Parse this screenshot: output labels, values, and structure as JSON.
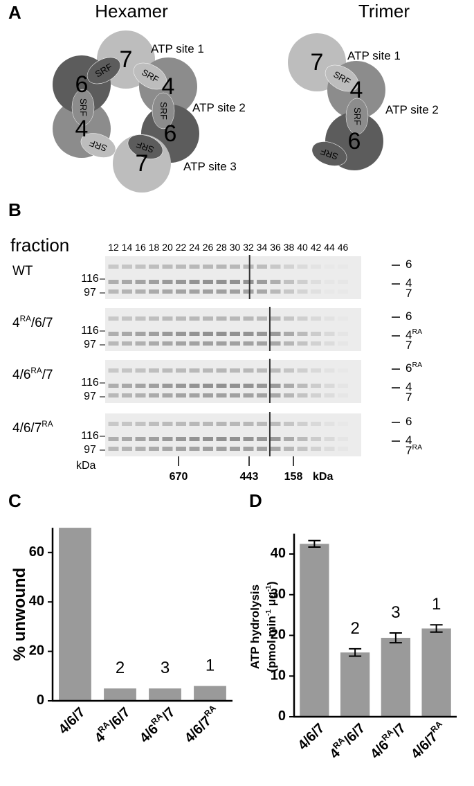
{
  "panel_a": {
    "label": "A",
    "domain": "SRF",
    "hexamer": {
      "title": "Hexamer",
      "subunits": [
        7,
        4,
        6,
        7,
        4,
        6
      ],
      "sites": [
        "ATP site 1",
        "ATP site 2",
        "ATP site 3"
      ]
    },
    "trimer": {
      "title": "Trimer",
      "subunits": [
        7,
        4,
        6
      ],
      "sites": [
        "ATP site 1",
        "ATP site 2"
      ]
    }
  },
  "panel_b": {
    "label": "B",
    "fraction_label": "fraction",
    "fractions": [
      12,
      14,
      16,
      18,
      20,
      22,
      24,
      26,
      28,
      30,
      32,
      34,
      36,
      38,
      40,
      42,
      44,
      46
    ],
    "rows": [
      {
        "name": "WT",
        "bands": [
          "6",
          "4",
          "7"
        ]
      },
      {
        "name": "4RA/6/7",
        "bands": [
          "6",
          "4RA",
          "7"
        ]
      },
      {
        "name": "4/6RA/7",
        "bands": [
          "6RA",
          "4",
          "7"
        ]
      },
      {
        "name": "4/6/7RA",
        "bands": [
          "6",
          "4",
          "7RA"
        ]
      }
    ],
    "mw_markers": [
      116,
      97
    ],
    "mw_unit": "kDa",
    "size_standards": [
      670,
      443,
      158
    ],
    "size_unit": "kDa"
  },
  "chart_data": [
    {
      "type": "bar",
      "panel_label": "C",
      "ylabel": [
        "% unwound"
      ],
      "categories": [
        "4/6/7",
        "4RA/6/7",
        "4/6RA/7",
        "4/6/7RA"
      ],
      "values": [
        70,
        5,
        5,
        6
      ],
      "color": "#9a9a9a",
      "ylim": [
        0,
        70
      ],
      "yticks": [
        0,
        20,
        40,
        60
      ],
      "annotations": [
        {
          "category": "4RA/6/7",
          "text": "2"
        },
        {
          "category": "4/6RA/7",
          "text": "3"
        },
        {
          "category": "4/6/7RA",
          "text": "1"
        }
      ]
    },
    {
      "type": "bar",
      "panel_label": "D",
      "ylabel": [
        "ATP hydrolysis",
        "(pmol min-1 μg-1)"
      ],
      "categories": [
        "4/6/7",
        "4RA/6/7",
        "4/6RA/7",
        "4/6/7RA"
      ],
      "values": [
        42.5,
        15.8,
        19.4,
        21.7
      ],
      "errors": [
        0.8,
        0.9,
        1.2,
        0.9
      ],
      "color": "#9a9a9a",
      "ylim": [
        0,
        45
      ],
      "yticks": [
        0,
        10,
        20,
        30,
        40
      ],
      "annotations": [
        {
          "category": "4RA/6/7",
          "text": "2"
        },
        {
          "category": "4/6RA/7",
          "text": "3"
        },
        {
          "category": "4/6/7RA",
          "text": "1"
        }
      ]
    }
  ]
}
